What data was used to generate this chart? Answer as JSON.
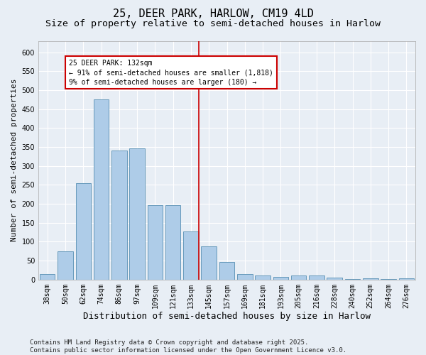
{
  "title": "25, DEER PARK, HARLOW, CM19 4LD",
  "subtitle": "Size of property relative to semi-detached houses in Harlow",
  "xlabel": "Distribution of semi-detached houses by size in Harlow",
  "ylabel": "Number of semi-detached properties",
  "categories": [
    "38sqm",
    "50sqm",
    "62sqm",
    "74sqm",
    "86sqm",
    "97sqm",
    "109sqm",
    "121sqm",
    "133sqm",
    "145sqm",
    "157sqm",
    "169sqm",
    "181sqm",
    "193sqm",
    "205sqm",
    "216sqm",
    "228sqm",
    "240sqm",
    "252sqm",
    "264sqm",
    "276sqm"
  ],
  "values": [
    15,
    75,
    255,
    475,
    340,
    347,
    197,
    197,
    127,
    87,
    46,
    15,
    10,
    8,
    10,
    10,
    6,
    1,
    3,
    1,
    3
  ],
  "bar_color": "#aecce8",
  "bar_edge_color": "#6699bb",
  "background_color": "#e8eef5",
  "grid_color": "#ffffff",
  "vline_color": "#cc0000",
  "annotation_text_line1": "25 DEER PARK: 132sqm",
  "annotation_text_line2": "← 91% of semi-detached houses are smaller (1,818)",
  "annotation_text_line3": "9% of semi-detached houses are larger (180) →",
  "annotation_box_color": "#cc0000",
  "ylim": [
    0,
    630
  ],
  "yticks": [
    0,
    50,
    100,
    150,
    200,
    250,
    300,
    350,
    400,
    450,
    500,
    550,
    600
  ],
  "footer": "Contains HM Land Registry data © Crown copyright and database right 2025.\nContains public sector information licensed under the Open Government Licence v3.0.",
  "title_fontsize": 11,
  "subtitle_fontsize": 9.5,
  "xlabel_fontsize": 9,
  "ylabel_fontsize": 8,
  "tick_fontsize": 7,
  "footer_fontsize": 6.5,
  "vline_idx": 8
}
